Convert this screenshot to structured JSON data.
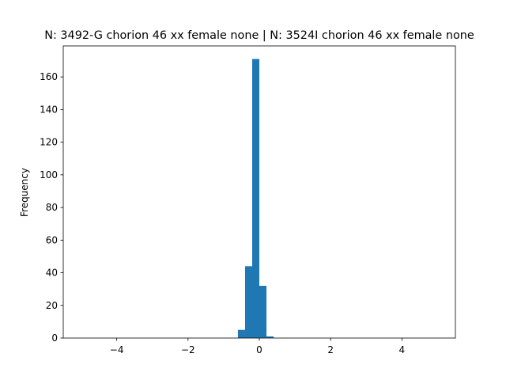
{
  "chart_data": {
    "type": "histogram",
    "title": "N: 3492-G chorion 46 xx female none | N: 3524I chorion 46 xx female none",
    "ylabel": "Frequency",
    "bins": [
      -0.6,
      -0.4,
      -0.2,
      0,
      0.2,
      0.4
    ],
    "values": [
      5,
      44,
      171,
      32,
      1
    ],
    "color": "#1f77b4",
    "xlim": [
      -5.5,
      5.5
    ],
    "xticks": [
      {
        "value": -4,
        "label": "−4"
      },
      {
        "value": -2,
        "label": "−2"
      },
      0,
      2,
      4
    ],
    "ylim": [
      0,
      179
    ],
    "yticks": [
      0,
      20,
      40,
      60,
      80,
      100,
      120,
      140,
      160
    ]
  }
}
